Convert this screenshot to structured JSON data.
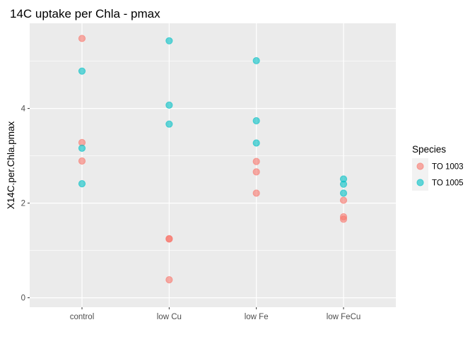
{
  "chart_data": {
    "type": "scatter",
    "title": "14C uptake per Chla - pmax",
    "xlabel": "",
    "ylabel": "X14C.per.Chla.pmax",
    "categories": [
      "control",
      "low Cu",
      "low Fe",
      "low FeCu"
    ],
    "ylim": [
      -0.2,
      5.8
    ],
    "yticks": [
      0,
      2,
      4
    ],
    "ytick_labels": [
      "0",
      "2",
      "4"
    ],
    "grid": true,
    "legend": {
      "title": "Species",
      "position": "right"
    },
    "series": [
      {
        "name": "TO 1003",
        "color": "#f8766d",
        "points": [
          {
            "x": "control",
            "y": 5.48
          },
          {
            "x": "control",
            "y": 3.28
          },
          {
            "x": "control",
            "y": 2.89
          },
          {
            "x": "low Cu",
            "y": 1.25
          },
          {
            "x": "low Cu",
            "y": 1.24
          },
          {
            "x": "low Cu",
            "y": 0.38
          },
          {
            "x": "low Fe",
            "y": 2.88
          },
          {
            "x": "low Fe",
            "y": 2.66
          },
          {
            "x": "low Fe",
            "y": 2.21
          },
          {
            "x": "low FeCu",
            "y": 2.06
          },
          {
            "x": "low FeCu",
            "y": 1.71
          },
          {
            "x": "low FeCu",
            "y": 1.66
          }
        ]
      },
      {
        "name": "TO 1005",
        "color": "#00bfc4",
        "points": [
          {
            "x": "control",
            "y": 4.79
          },
          {
            "x": "control",
            "y": 3.16
          },
          {
            "x": "control",
            "y": 2.41
          },
          {
            "x": "low Cu",
            "y": 5.43
          },
          {
            "x": "low Cu",
            "y": 4.07
          },
          {
            "x": "low Cu",
            "y": 3.67
          },
          {
            "x": "low Fe",
            "y": 5.01
          },
          {
            "x": "low Fe",
            "y": 3.74
          },
          {
            "x": "low Fe",
            "y": 3.27
          },
          {
            "x": "low FeCu",
            "y": 2.51
          },
          {
            "x": "low FeCu",
            "y": 2.4
          },
          {
            "x": "low FeCu",
            "y": 2.21
          }
        ]
      }
    ]
  }
}
